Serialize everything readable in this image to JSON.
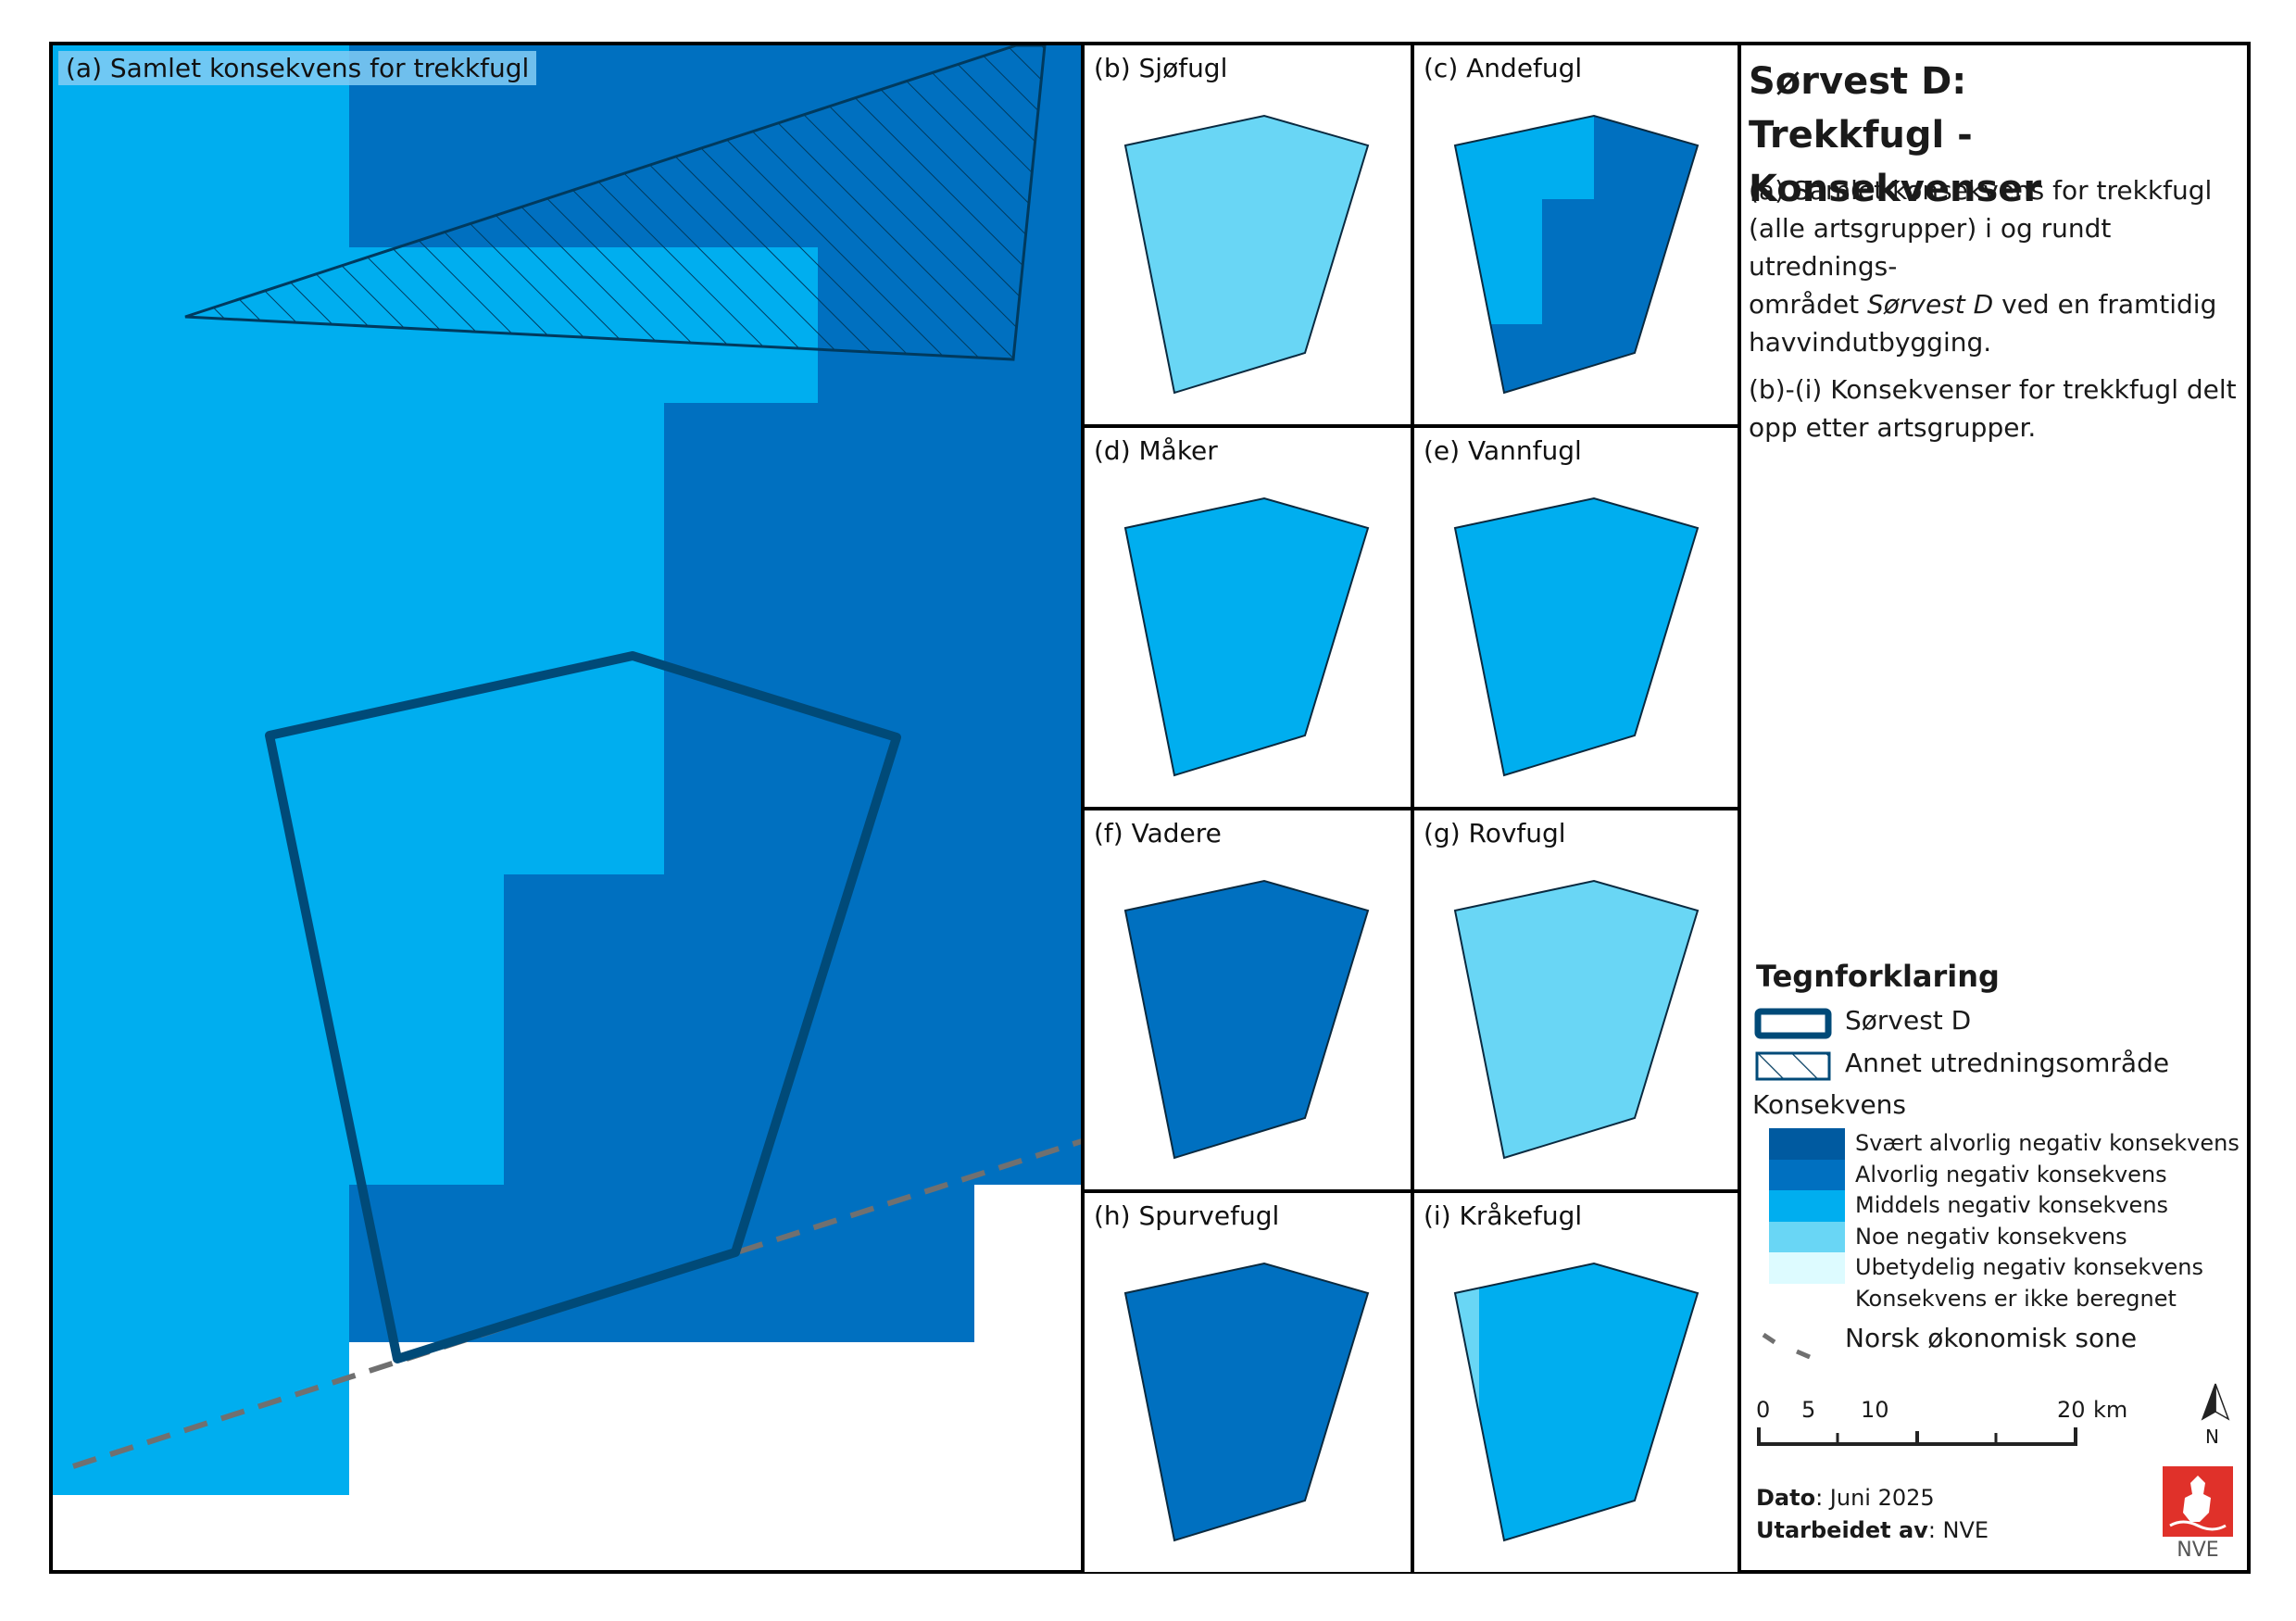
{
  "colors": {
    "svaert_alvorlig": "#005aa0",
    "alvorlig": "#0070c0",
    "middels": "#00aeef",
    "noe": "#69d6f5",
    "ubetydelig": "#ddfbff",
    "ikke_beregnet": "#ffffff",
    "outline": "#004a78",
    "nve_red": "#e0312a"
  },
  "panels": {
    "a": {
      "label": "(a) Samlet konsekvens for trekkfugl"
    },
    "b": {
      "label": "(b) Sjøfugl",
      "fill": "noe"
    },
    "c": {
      "label": "(c) Andefugl",
      "fill": "mixed-middels-alvorlig"
    },
    "d": {
      "label": "(d) Måker",
      "fill": "middels"
    },
    "e": {
      "label": "(e) Vannfugl",
      "fill": "middels"
    },
    "f": {
      "label": "(f) Vadere",
      "fill": "alvorlig"
    },
    "g": {
      "label": "(g) Rovfugl",
      "fill": "noe"
    },
    "h": {
      "label": "(h) Spurvefugl",
      "fill": "alvorlig"
    },
    "i": {
      "label": "(i) Kråkefugl",
      "fill": "mixed-noe-middels"
    }
  },
  "side": {
    "title_line1": "Sørvest D:",
    "title_line2": "Trekkfugl - Konsekvenser",
    "desc_a_1": "(a) Samlet konsekvens for trekkfugl",
    "desc_a_2": "(alle artsgrupper) i og rundt utrednings-",
    "desc_a_3_pre": "området ",
    "desc_a_3_em": "Sørvest D",
    "desc_a_3_post": " ved en framtidig",
    "desc_a_4": "havvindutbygging.",
    "desc_b_1": "(b)-(i) Konsekvenser for trekkfugl delt",
    "desc_b_2": "opp etter artsgrupper."
  },
  "legend": {
    "title": "Tegnforklaring",
    "area": "Sørvest D",
    "other_area": "Annet utredningsområde",
    "konsekvens_title": "Konsekvens",
    "classes": [
      {
        "label": "Svært alvorlig negativ konsekvens",
        "color": "#005aa0"
      },
      {
        "label": "Alvorlig negativ konsekvens",
        "color": "#0070c0"
      },
      {
        "label": "Middels negativ konsekvens",
        "color": "#00aeef"
      },
      {
        "label": "Noe negativ konsekvens",
        "color": "#69d6f5"
      },
      {
        "label": "Ubetydelig negativ konsekvens",
        "color": "#ddfbff"
      },
      {
        "label": "Konsekvens er ikke beregnet",
        "color": "#ffffff"
      }
    ],
    "eez": "Norsk økonomisk sone"
  },
  "scalebar": {
    "ticks": [
      "0",
      "5",
      "10",
      "20"
    ],
    "unit": "km"
  },
  "north": "N",
  "meta": {
    "dato_label": "Dato",
    "dato_value": ": Juni 2025",
    "utarbeidet_label": "Utarbeidet av",
    "utarbeidet_value": ": NVE"
  },
  "logo_text": "NVE"
}
